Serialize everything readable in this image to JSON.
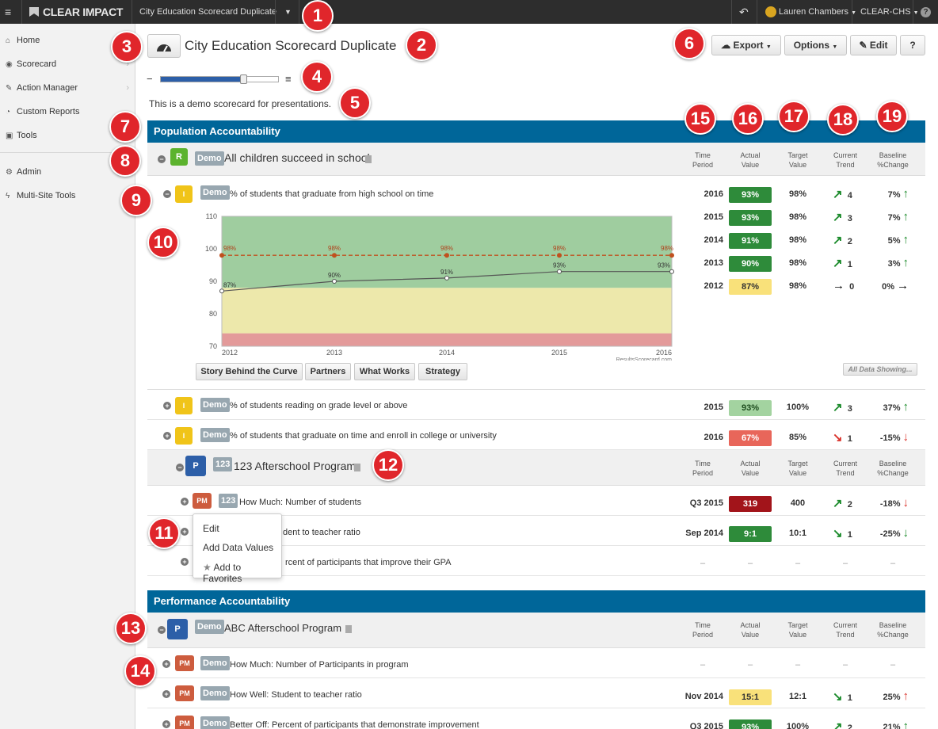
{
  "topbar": {
    "brand": "CLEAR IMPACT",
    "scorecard_name": "City Education Scorecard Duplicate",
    "user": "Lauren Chambers",
    "site": "CLEAR-CHS",
    "help": "?"
  },
  "sidebar": {
    "items": [
      {
        "label": "Home",
        "icon": "home-icon",
        "glyph": "⌂"
      },
      {
        "label": "Scorecard",
        "icon": "dashboard-icon",
        "glyph": "◉"
      },
      {
        "label": "Action Manager",
        "icon": "wrench-icon",
        "glyph": "✎"
      },
      {
        "label": "Custom Reports",
        "icon": "pie-icon",
        "glyph": "◔"
      },
      {
        "label": "Tools",
        "icon": "briefcase-icon",
        "glyph": "▣"
      },
      {
        "label": "Admin",
        "icon": "cogs-icon",
        "glyph": "⚙"
      },
      {
        "label": "Multi-Site Tools",
        "icon": "bolt-icon",
        "glyph": "ϟ"
      }
    ]
  },
  "header": {
    "title": "City Education Scorecard Duplicate",
    "description": "This is a demo scorecard for presentations.",
    "export": "Export",
    "options": "Options",
    "edit": "Edit",
    "help": "?",
    "zoom": "70"
  },
  "columns": {
    "period": [
      "Time",
      "Period"
    ],
    "actual": [
      "Actual",
      "Value"
    ],
    "target": [
      "Target",
      "Value"
    ],
    "trend": [
      "Current",
      "Trend"
    ],
    "baseline": [
      "Baseline",
      "%Change"
    ]
  },
  "sections": {
    "population": "Population Accountability",
    "performance": "Performance Accountability"
  },
  "result": {
    "tag": "R",
    "demo": "Demo",
    "title": "All children succeed in school"
  },
  "indicator1": {
    "tag": "I",
    "demo": "Demo",
    "title": "% of students that graduate from high school on time",
    "rows": [
      {
        "period": "2016",
        "actual": "93%",
        "target": "98%",
        "trend_arrow": "↗",
        "trend": "4",
        "baseline": "7%",
        "base_arrow": "↑"
      },
      {
        "period": "2015",
        "actual": "93%",
        "target": "98%",
        "trend_arrow": "↗",
        "trend": "3",
        "baseline": "7%",
        "base_arrow": "↑"
      },
      {
        "period": "2014",
        "actual": "91%",
        "target": "98%",
        "trend_arrow": "↗",
        "trend": "2",
        "baseline": "5%",
        "base_arrow": "↑"
      },
      {
        "period": "2013",
        "actual": "90%",
        "target": "98%",
        "trend_arrow": "↗",
        "trend": "1",
        "baseline": "3%",
        "base_arrow": "↑"
      },
      {
        "period": "2012",
        "actual": "87%",
        "target": "98%",
        "trend_arrow": "→",
        "trend": "0",
        "baseline": "0%",
        "base_arrow": "→"
      }
    ]
  },
  "chart_data": {
    "type": "line",
    "x": [
      "2012",
      "2013",
      "2014",
      "2015",
      "2016"
    ],
    "series": [
      {
        "name": "",
        "values": [
          87,
          90,
          91,
          93,
          93
        ],
        "labels": [
          "87%",
          "90%",
          "91%",
          "93%",
          "93%"
        ]
      },
      {
        "name": "",
        "values": [
          98,
          98,
          98,
          98,
          98
        ],
        "labels": [
          "98%",
          "98%",
          "98%",
          "98%",
          "98%"
        ]
      }
    ],
    "ylim": [
      70,
      110
    ],
    "yticks": [
      "110",
      "100",
      "90",
      "80",
      "70"
    ],
    "bands": [
      {
        "from": 70,
        "to": 74,
        "color": "#e39a9a"
      },
      {
        "from": 74,
        "to": 88,
        "color": "#ede8ab"
      },
      {
        "from": 88,
        "to": 110,
        "color": "#9fcd9f"
      }
    ],
    "watermark": "ResultsScorecard.com",
    "title": "",
    "xlabel": "",
    "ylabel": ""
  },
  "chart_tabs": [
    "Story Behind the Curve",
    "Partners",
    "What Works",
    "Strategy"
  ],
  "all_data": "All Data Showing...",
  "indicator2": {
    "tag": "I",
    "demo": "Demo",
    "title": "% of students reading on grade level or above",
    "period": "2015",
    "actual": "93%",
    "target": "100%",
    "trend_arrow": "↗",
    "trend": "3",
    "baseline": "37%",
    "base_arrow": "↑"
  },
  "indicator3": {
    "tag": "I",
    "demo": "Demo",
    "title": "% of students that graduate on time and enroll in college or university",
    "period": "2016",
    "actual": "67%",
    "target": "85%",
    "trend_arrow": "↘",
    "trend": "1",
    "baseline": "-15%",
    "base_arrow": "↓"
  },
  "program1": {
    "tag": "P",
    "demo": "123",
    "title": "123 Afterschool Program"
  },
  "pm1": {
    "tag": "PM",
    "demo": "123",
    "title": "How Much: Number of students",
    "period": "Q3 2015",
    "actual": "319",
    "target": "400",
    "trend_arrow": "↗",
    "trend": "2",
    "baseline": "-18%",
    "base_arrow": "↓"
  },
  "pm2": {
    "title": "dent to teacher ratio",
    "period": "Sep 2014",
    "actual": "9:1",
    "target": "10:1",
    "trend_arrow": "↘",
    "trend": "1",
    "baseline": "-25%",
    "base_arrow": "↓"
  },
  "pm3": {
    "title": "rcent of participants that improve their GPA",
    "dash": "–"
  },
  "context_menu": {
    "edit": "Edit",
    "add_data": "Add Data Values",
    "favorites": "Add to Favorites"
  },
  "program2": {
    "tag": "P",
    "demo": "Demo",
    "title": "ABC Afterschool Program"
  },
  "pm4": {
    "tag": "PM",
    "demo": "Demo",
    "title": "How Much: Number of Participants in program",
    "dash": "–"
  },
  "pm5": {
    "tag": "PM",
    "demo": "Demo",
    "title": "How Well: Student to teacher ratio",
    "period": "Nov 2014",
    "actual": "15:1",
    "target": "12:1",
    "trend_arrow": "↘",
    "trend": "1",
    "baseline": "25%",
    "base_arrow": "↑"
  },
  "pm6": {
    "tag": "PM",
    "demo": "Demo",
    "title": "Better Off: Percent of participants that demonstrate improvement",
    "period": "Q3 2015",
    "actual": "93%",
    "target": "100%",
    "trend_arrow": "↗",
    "trend": "2",
    "baseline": "21%",
    "base_arrow": "↑"
  },
  "callouts": [
    "1",
    "2",
    "3",
    "4",
    "5",
    "6",
    "7",
    "8",
    "9",
    "10",
    "11",
    "12",
    "13",
    "14",
    "15",
    "16",
    "17",
    "18",
    "19"
  ]
}
